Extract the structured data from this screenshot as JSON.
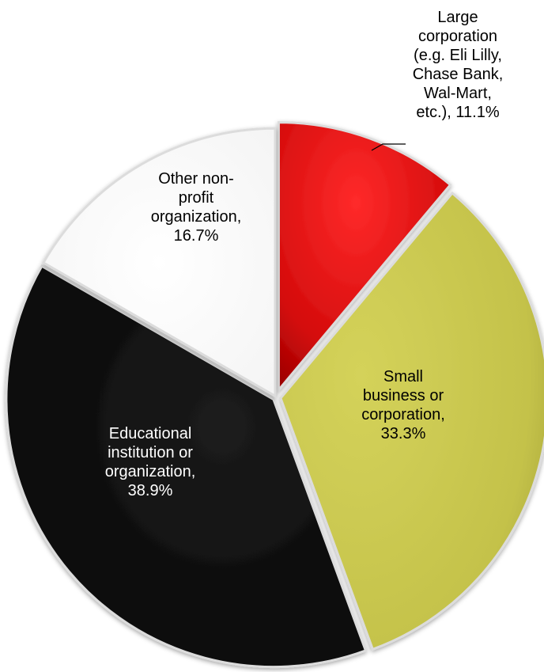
{
  "chart_data": {
    "type": "pie",
    "title": "",
    "start_angle_deg": 0,
    "direction": "clockwise",
    "slices": [
      {
        "label": "Large corporation (e.g. Eli Lilly, Chase Bank, Wal-Mart, etc.)",
        "value": 11.1,
        "value_label": "11.1%",
        "label_lines": [
          "Large",
          "corporation",
          "(e.g. Eli Lilly,",
          "Chase Bank,",
          "Wal-Mart,",
          "etc.), 11.1%"
        ],
        "color": "#d40c0c",
        "label_color": "#000000",
        "label_position": "outside-top-right"
      },
      {
        "label": "Small business or corporation",
        "value": 33.3,
        "value_label": "33.3%",
        "label_lines": [
          "Small",
          "business or",
          "corporation,",
          "33.3%"
        ],
        "color": "#c4c24a",
        "label_color": "#000000",
        "label_position": "inside"
      },
      {
        "label": "Educational institution or organization",
        "value": 38.9,
        "value_label": "38.9%",
        "label_lines": [
          "Educational",
          "institution or",
          "organization,",
          "38.9%"
        ],
        "color": "#0a0a0a",
        "label_color": "#ffffff",
        "label_position": "inside"
      },
      {
        "label": "Other non-profit organization",
        "value": 16.7,
        "value_label": "16.7%",
        "label_lines": [
          "Other non-",
          "profit",
          "organization,",
          "16.7%"
        ],
        "color": "#ffffff",
        "label_color": "#000000",
        "label_position": "inside"
      }
    ],
    "legend": "none"
  }
}
